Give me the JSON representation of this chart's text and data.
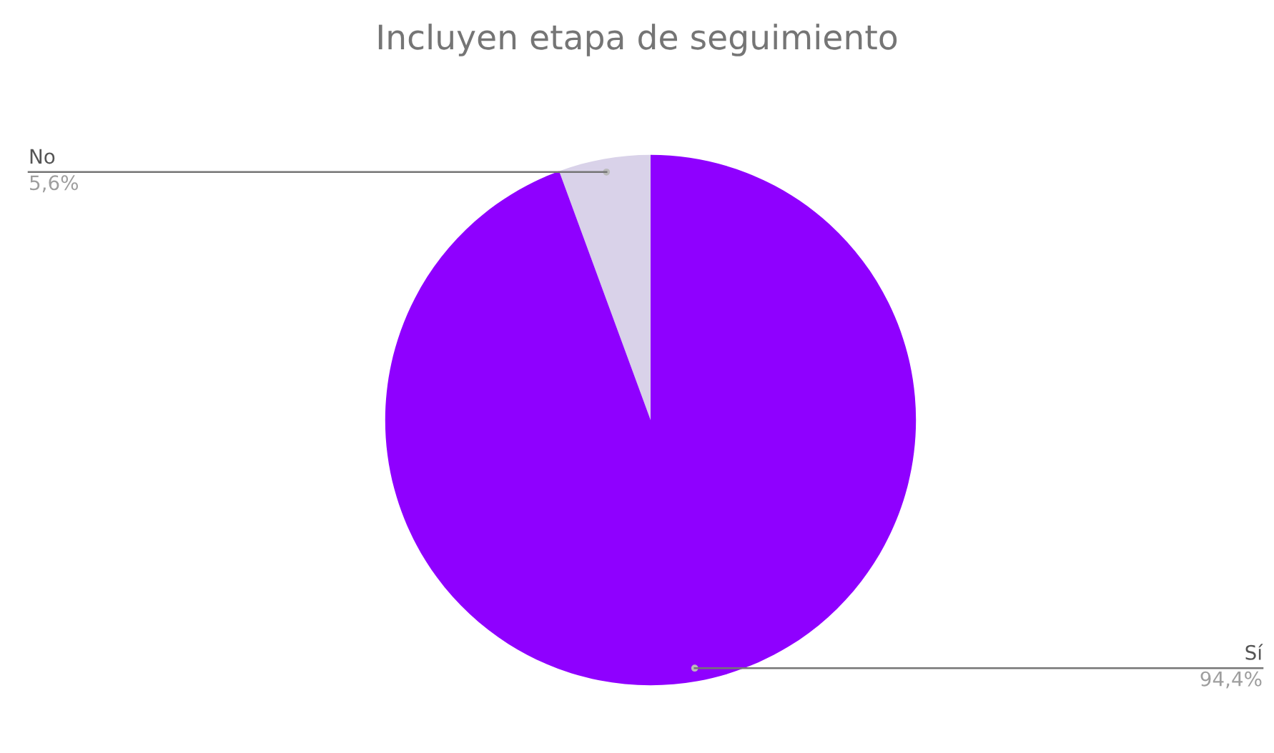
{
  "chart_data": {
    "type": "pie",
    "title": "Incluyen etapa de seguimiento",
    "categories": [
      "No",
      "Sí"
    ],
    "values": [
      5.6,
      94.4
    ],
    "colors": [
      "#d9d2e9",
      "#8f00ff"
    ],
    "value_labels": [
      "5,6%",
      "94,4%"
    ],
    "legend": false
  }
}
